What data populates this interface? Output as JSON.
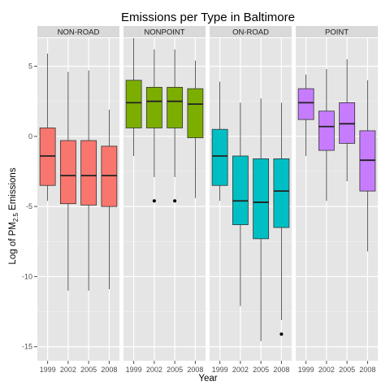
{
  "chart_data": {
    "type": "boxplot",
    "title": "Emissions per Type in Baltimore",
    "xlabel": "Year",
    "ylabel_prefix": "Log of PM",
    "ylabel_sub": "2.5",
    "ylabel_suffix": " Emissions",
    "ylim": [
      -16,
      7
    ],
    "yticks": [
      5,
      0,
      -5,
      -10,
      -15
    ],
    "categories": [
      "1999",
      "2002",
      "2005",
      "2008"
    ],
    "grid": true,
    "panels": [
      {
        "name": "NON-ROAD",
        "color": "#F8766D",
        "boxes": [
          {
            "year": "1999",
            "min": -4.6,
            "q1": -3.5,
            "median": -1.4,
            "q3": 0.6,
            "max": 5.9,
            "outliers": []
          },
          {
            "year": "2002",
            "min": -11.0,
            "q1": -4.8,
            "median": -2.8,
            "q3": -0.3,
            "max": 4.6,
            "outliers": []
          },
          {
            "year": "2005",
            "min": -11.0,
            "q1": -4.9,
            "median": -2.8,
            "q3": -0.3,
            "max": 4.7,
            "outliers": []
          },
          {
            "year": "2008",
            "min": -10.9,
            "q1": -5.0,
            "median": -2.8,
            "q3": -0.7,
            "max": 1.9,
            "outliers": []
          }
        ]
      },
      {
        "name": "NONPOINT",
        "color": "#7CAE00",
        "boxes": [
          {
            "year": "1999",
            "min": -1.4,
            "q1": 0.6,
            "median": 2.4,
            "q3": 4.0,
            "max": 7.0,
            "outliers": []
          },
          {
            "year": "2002",
            "min": -2.9,
            "q1": 0.6,
            "median": 2.5,
            "q3": 3.5,
            "max": 6.2,
            "outliers": [
              -4.6
            ]
          },
          {
            "year": "2005",
            "min": -2.9,
            "q1": 0.6,
            "median": 2.5,
            "q3": 3.5,
            "max": 6.2,
            "outliers": [
              -4.6
            ]
          },
          {
            "year": "2008",
            "min": -4.4,
            "q1": -0.1,
            "median": 2.3,
            "q3": 3.4,
            "max": 5.4,
            "outliers": []
          }
        ]
      },
      {
        "name": "ON-ROAD",
        "color": "#00BFC4",
        "boxes": [
          {
            "year": "1999",
            "min": -4.6,
            "q1": -3.5,
            "median": -1.4,
            "q3": 0.5,
            "max": 3.9,
            "outliers": []
          },
          {
            "year": "2002",
            "min": -12.1,
            "q1": -6.3,
            "median": -4.6,
            "q3": -1.4,
            "max": 2.4,
            "outliers": []
          },
          {
            "year": "2005",
            "min": -14.6,
            "q1": -7.3,
            "median": -4.7,
            "q3": -1.6,
            "max": 2.7,
            "outliers": []
          },
          {
            "year": "2008",
            "min": -13.1,
            "q1": -6.5,
            "median": -3.9,
            "q3": -1.6,
            "max": 2.4,
            "outliers": [
              -14.1
            ]
          }
        ]
      },
      {
        "name": "POINT",
        "color": "#C77CFF",
        "boxes": [
          {
            "year": "1999",
            "min": -1.4,
            "q1": 1.2,
            "median": 2.4,
            "q3": 3.4,
            "max": 4.4,
            "outliers": []
          },
          {
            "year": "2002",
            "min": -4.6,
            "q1": -1.0,
            "median": 0.7,
            "q3": 1.8,
            "max": 4.8,
            "outliers": []
          },
          {
            "year": "2005",
            "min": -3.2,
            "q1": -0.5,
            "median": 0.9,
            "q3": 2.4,
            "max": 5.5,
            "outliers": []
          },
          {
            "year": "2008",
            "min": -8.2,
            "q1": -3.9,
            "median": -1.7,
            "q3": 0.4,
            "max": 4.0,
            "outliers": []
          }
        ]
      }
    ]
  }
}
